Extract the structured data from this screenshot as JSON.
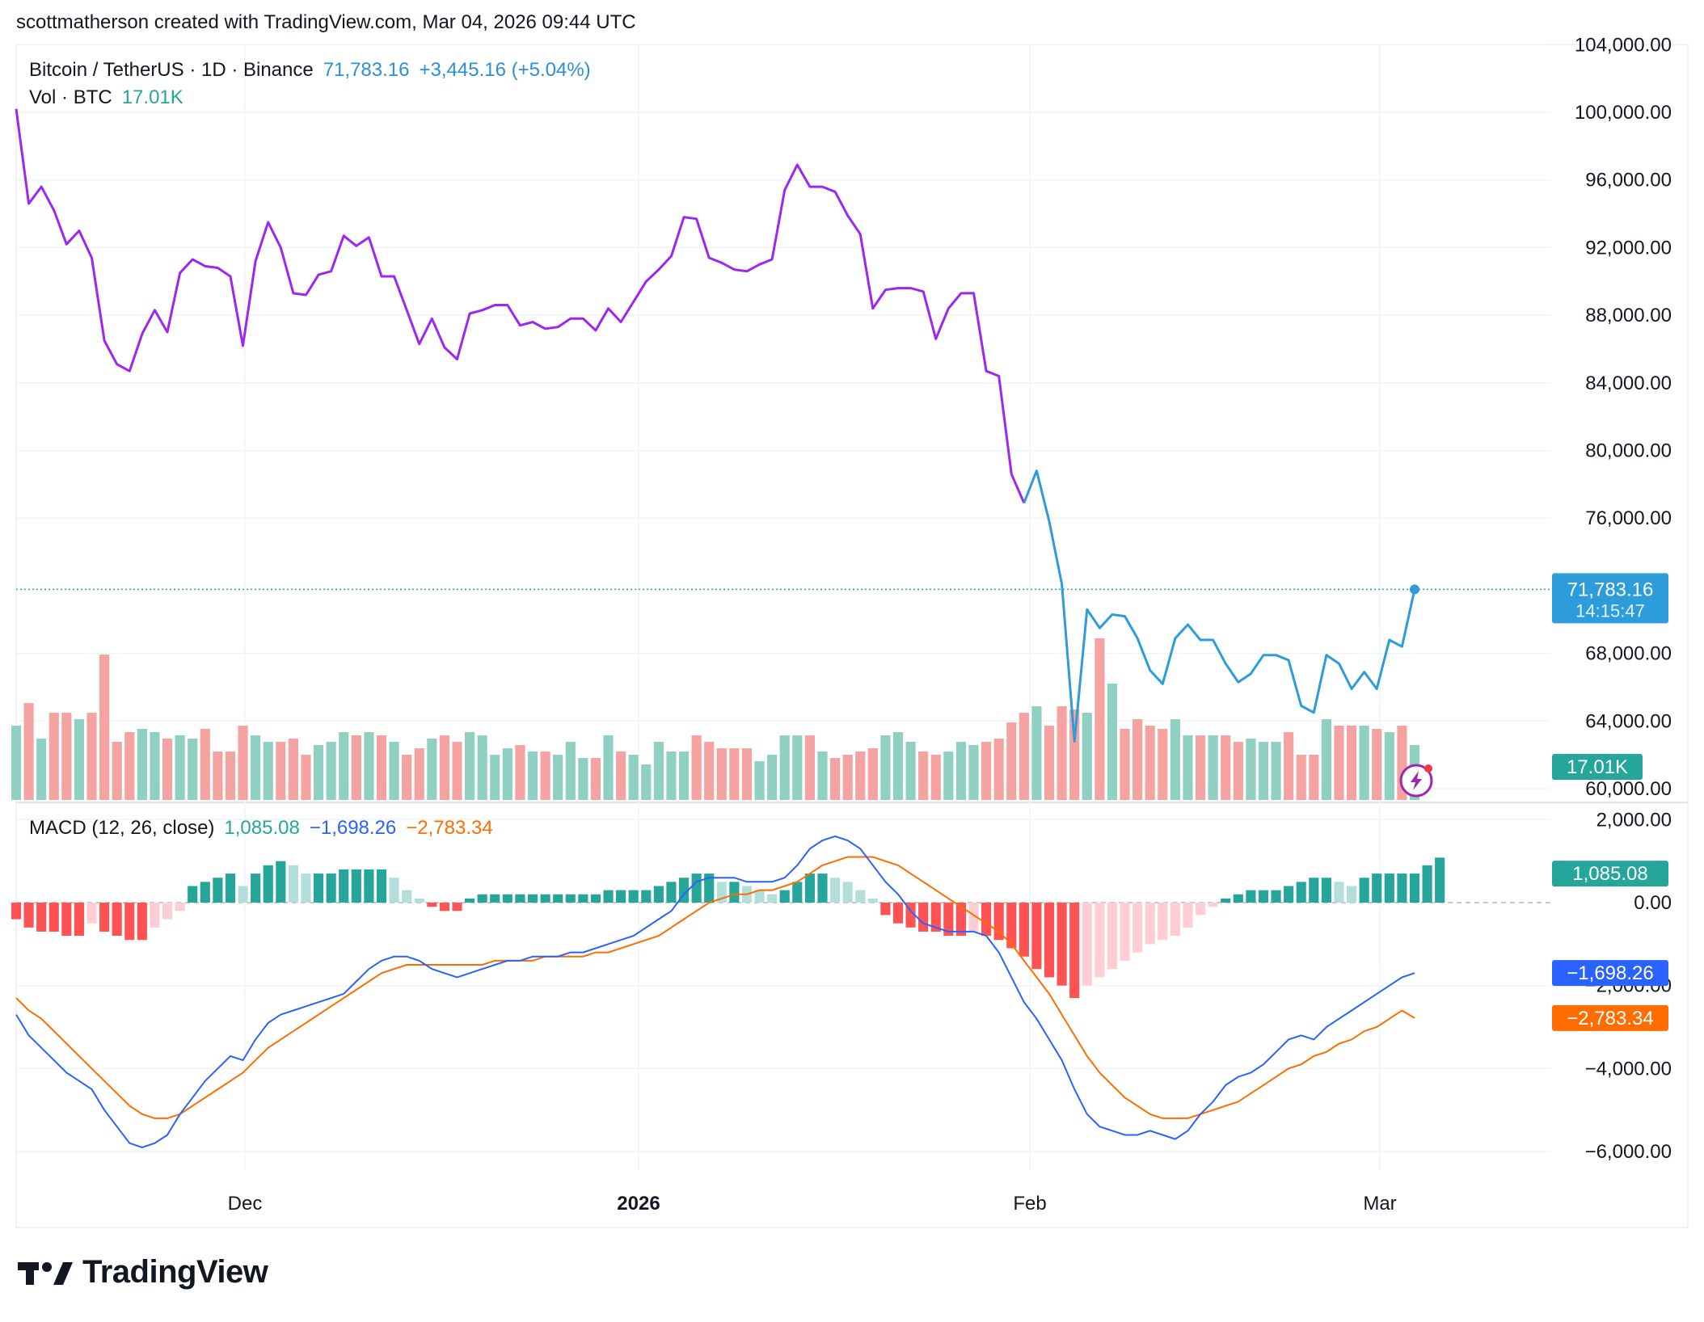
{
  "header": {
    "attribution": "scottmatherson created with TradingView.com, Mar 04, 2026 09:44 UTC"
  },
  "legend": {
    "symbol": "Bitcoin / TetherUS · 1D · Binance",
    "price": "71,783.16",
    "change": "+3,445.16 (+5.04%)",
    "volume_label": "Vol · BTC",
    "volume_value": "17.01K",
    "macd_label": "MACD (12, 26, close)",
    "macd_hist": "1,085.08",
    "macd_line": "−1,698.26",
    "macd_signal": "−2,783.34"
  },
  "price_axis": {
    "ticks": [
      "104,000.00",
      "100,000.00",
      "96,000.00",
      "92,000.00",
      "88,000.00",
      "84,000.00",
      "80,000.00",
      "76,000.00",
      "68,000.00",
      "64,000.00",
      "60,000.00"
    ],
    "last_price_label": "71,783.16",
    "countdown_label": "14:15:47",
    "volume_badge": "17.01K"
  },
  "macd_axis": {
    "ticks": [
      "2,000.00",
      "0.00",
      "−2,000.00",
      "−4,000.00",
      "−6,000.00"
    ],
    "hist_badge": "1,085.08",
    "macd_badge": "−1,698.26",
    "signal_badge": "−2,783.34"
  },
  "time_axis": {
    "labels": [
      "Dec",
      "2026",
      "Feb",
      "Mar"
    ]
  },
  "colors": {
    "price_line_before": "#9c27f0",
    "price_line_after": "#2d9cdb",
    "up_volume": "#8fd0c3",
    "down_volume": "#f4a3a1",
    "macd_line": "#2962ff",
    "signal_line": "#ff6d00",
    "hist_strong_up": "#26a69a",
    "hist_weak_up": "#b2dfdb",
    "hist_strong_down": "#ff5252",
    "hist_weak_down": "#ffcdd2",
    "last_price_badge": "#2d9cdb",
    "volume_badge": "#26a69a"
  },
  "footer": {
    "brand": "TradingView"
  },
  "chart_data": {
    "type": "line",
    "dates_span": "2025-11-14 to 2026-03-04 (daily)",
    "price_close": [
      100200,
      94600,
      95600,
      94200,
      92200,
      93000,
      91400,
      86500,
      85100,
      84700,
      86900,
      88300,
      87000,
      90500,
      91300,
      90900,
      90800,
      90300,
      86200,
      91200,
      93500,
      92000,
      89300,
      89200,
      90400,
      90600,
      92700,
      92100,
      92600,
      90300,
      90300,
      88300,
      86300,
      87800,
      86100,
      85400,
      88100,
      88300,
      88600,
      88600,
      87400,
      87600,
      87200,
      87300,
      87800,
      87800,
      87100,
      88400,
      87600,
      88800,
      90000,
      90700,
      91500,
      93800,
      93700,
      91400,
      91100,
      90700,
      90600,
      91000,
      91300,
      95400,
      96900,
      95600,
      95600,
      95300,
      93900,
      92800,
      88400,
      89500,
      89600,
      89600,
      89400,
      86600,
      88400,
      89300,
      89300,
      84700,
      84400,
      78600,
      76900,
      78800,
      75800,
      72100,
      62800,
      70600,
      69500,
      70300,
      70200,
      68900,
      67000,
      66200,
      68900,
      69700,
      68800,
      68800,
      67400,
      66300,
      66800,
      67900,
      67900,
      67600,
      64900,
      64500,
      67900,
      67400,
      65900,
      66900,
      65900,
      68800,
      68400,
      71783.16
    ],
    "volume_btc_k": [
      23,
      30,
      19,
      27,
      27,
      25,
      27,
      45,
      18,
      21,
      22,
      21,
      19,
      20,
      19,
      22,
      15,
      15,
      23,
      20,
      18,
      18,
      19,
      14,
      17,
      18,
      21,
      20,
      21,
      20,
      18,
      14,
      16,
      19,
      20,
      18,
      21,
      20,
      14,
      16,
      17,
      15,
      15,
      14,
      18,
      13,
      13,
      20,
      15,
      14,
      11,
      18,
      15,
      15,
      20,
      18,
      16,
      16,
      16,
      12,
      14,
      20,
      20,
      20,
      15,
      13,
      14,
      15,
      16,
      20,
      21,
      18,
      15,
      14,
      15,
      18,
      17,
      18,
      19,
      24,
      27,
      29,
      23,
      29,
      28,
      27,
      50,
      36,
      22,
      25,
      23,
      22,
      25,
      20,
      20,
      20,
      20,
      18,
      19,
      18,
      18,
      21,
      14,
      14,
      25,
      23,
      23,
      23,
      22,
      21,
      23,
      17.01
    ],
    "macd_line": [
      -2700,
      -3200,
      -3500,
      -3800,
      -4100,
      -4300,
      -4500,
      -5000,
      -5400,
      -5800,
      -5900,
      -5800,
      -5600,
      -5100,
      -4700,
      -4300,
      -4000,
      -3700,
      -3800,
      -3300,
      -2900,
      -2700,
      -2600,
      -2500,
      -2400,
      -2300,
      -2200,
      -1900,
      -1600,
      -1400,
      -1300,
      -1300,
      -1400,
      -1600,
      -1700,
      -1800,
      -1700,
      -1600,
      -1500,
      -1400,
      -1400,
      -1300,
      -1300,
      -1300,
      -1200,
      -1200,
      -1100,
      -1000,
      -900,
      -800,
      -600,
      -400,
      -200,
      200,
      500,
      600,
      600,
      600,
      500,
      500,
      500,
      600,
      900,
      1300,
      1500,
      1600,
      1500,
      1300,
      900,
      500,
      200,
      -200,
      -500,
      -600,
      -700,
      -700,
      -700,
      -800,
      -1200,
      -1800,
      -2400,
      -2800,
      -3300,
      -3800,
      -4500,
      -5100,
      -5400,
      -5500,
      -5600,
      -5600,
      -5500,
      -5600,
      -5700,
      -5500,
      -5100,
      -4800,
      -4400,
      -4200,
      -4100,
      -3900,
      -3600,
      -3300,
      -3200,
      -3300,
      -3000,
      -2800,
      -2600,
      -2400,
      -2200,
      -2000,
      -1800,
      -1698.26
    ],
    "signal_line": [
      -2300,
      -2600,
      -2800,
      -3100,
      -3400,
      -3700,
      -4000,
      -4300,
      -4600,
      -4900,
      -5100,
      -5200,
      -5200,
      -5100,
      -4900,
      -4700,
      -4500,
      -4300,
      -4100,
      -3800,
      -3500,
      -3300,
      -3100,
      -2900,
      -2700,
      -2500,
      -2300,
      -2100,
      -1900,
      -1700,
      -1600,
      -1500,
      -1500,
      -1500,
      -1500,
      -1500,
      -1500,
      -1500,
      -1400,
      -1400,
      -1400,
      -1400,
      -1300,
      -1300,
      -1300,
      -1300,
      -1200,
      -1200,
      -1100,
      -1000,
      -900,
      -800,
      -600,
      -400,
      -200,
      0,
      100,
      200,
      200,
      300,
      300,
      400,
      500,
      700,
      900,
      1000,
      1100,
      1100,
      1100,
      1000,
      900,
      700,
      500,
      300,
      100,
      -100,
      -300,
      -500,
      -700,
      -1000,
      -1400,
      -1800,
      -2200,
      -2700,
      -3200,
      -3700,
      -4100,
      -4400,
      -4700,
      -4900,
      -5100,
      -5200,
      -5200,
      -5200,
      -5100,
      -5000,
      -4900,
      -4800,
      -4600,
      -4400,
      -4200,
      -4000,
      -3900,
      -3700,
      -3600,
      -3400,
      -3300,
      -3100,
      -3000,
      -2800,
      -2600,
      -2783.34
    ],
    "macd_histogram": [
      -400,
      -600,
      -700,
      -700,
      -800,
      -800,
      -500,
      -700,
      -800,
      -900,
      -900,
      -600,
      -400,
      -200,
      400,
      500,
      600,
      700,
      400,
      700,
      900,
      1000,
      900,
      700,
      700,
      700,
      800,
      800,
      800,
      800,
      600,
      300,
      100,
      -100,
      -200,
      -200,
      100,
      200,
      200,
      200,
      200,
      200,
      200,
      200,
      200,
      200,
      200,
      300,
      300,
      300,
      300,
      400,
      500,
      600,
      700,
      700,
      500,
      500,
      400,
      300,
      200,
      300,
      500,
      700,
      700,
      600,
      500,
      300,
      100,
      -300,
      -500,
      -600,
      -700,
      -700,
      -800,
      -800,
      -700,
      -800,
      -900,
      -1100,
      -1300,
      -1600,
      -1800,
      -2000,
      -2300,
      -2000,
      -1800,
      -1600,
      -1400,
      -1200,
      -1000,
      -900,
      -800,
      -600,
      -300,
      -100,
      100,
      200,
      300,
      300,
      300,
      400,
      500,
      600,
      600,
      500,
      400,
      600,
      700,
      700,
      700,
      700,
      900,
      1085.08
    ],
    "highlight_close": 71783.16,
    "price_ylim": [
      60000,
      104000
    ],
    "macd_ylim": [
      -6000,
      2000
    ],
    "grid": true
  }
}
